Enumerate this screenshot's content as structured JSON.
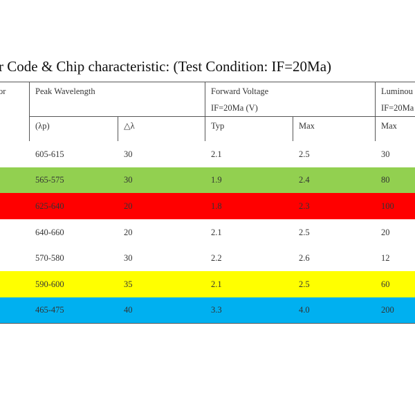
{
  "title": "r Code & Chip characteristic: (Test Condition: IF=20Ma)",
  "header": {
    "col0_top": "or",
    "peak_wavelength": "Peak Wavelength",
    "forward_voltage": "Forward Voltage",
    "forward_voltage_cond": "IF=20Ma (V)",
    "luminous": "Luminou",
    "luminous_cond": "IF=20Ma",
    "lambda_p": "(λp)",
    "delta_lambda": "△λ",
    "typ": "Typ",
    "max_v": "Max",
    "max_l": "Max"
  },
  "rows": [
    {
      "peak": "605-615",
      "delta": "30",
      "typ": "2.1",
      "max": "2.5",
      "lum": "30",
      "color": "#ffffff"
    },
    {
      "peak": "565-575",
      "delta": "30",
      "typ": "1.9",
      "max": "2.4",
      "lum": "80",
      "color": "#92d050"
    },
    {
      "peak": "625-640",
      "delta": "20",
      "typ": "1.8",
      "max": "2.3",
      "lum": "100",
      "color": "#ff0000"
    },
    {
      "peak": "640-660",
      "delta": "20",
      "typ": "2.1",
      "max": "2.5",
      "lum": "20",
      "color": "#ffffff"
    },
    {
      "peak": "570-580",
      "delta": "30",
      "typ": "2.2",
      "max": "2.6",
      "lum": "12",
      "color": "#ffffff"
    },
    {
      "peak": "590-600",
      "delta": "35",
      "typ": "2.1",
      "max": "2.5",
      "lum": "60",
      "color": "#ffff00"
    },
    {
      "peak": "465-475",
      "delta": "40",
      "typ": "3.3",
      "max": "4.0",
      "lum": "200",
      "color": "#00b0f0"
    }
  ]
}
